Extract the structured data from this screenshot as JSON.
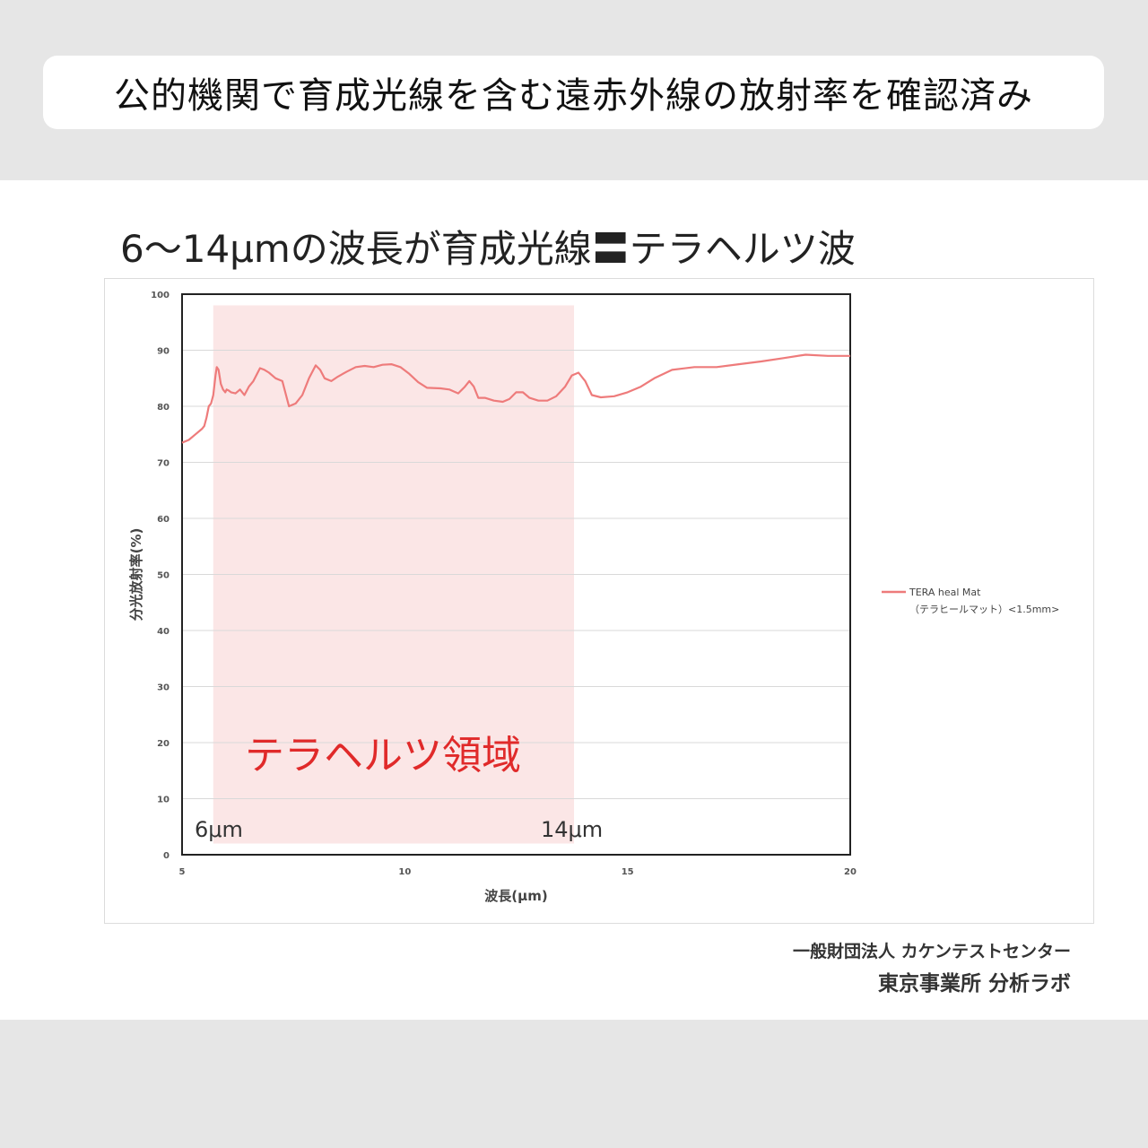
{
  "banner": {
    "text": "公的機関で育成光線を含む遠赤外線の放射率を確認済み"
  },
  "headline": {
    "text": "6〜14μmの波長が育成光線〓テラヘルツ波"
  },
  "chart_data": {
    "type": "line",
    "xlabel": "波長(μm)",
    "ylabel": "分光放射率(%)",
    "xlim": [
      5,
      20
    ],
    "ylim": [
      0,
      100
    ],
    "x_ticks": [
      5,
      10,
      15,
      20
    ],
    "y_ticks": [
      0,
      10,
      20,
      30,
      40,
      50,
      60,
      70,
      80,
      90,
      100
    ],
    "grid": "horizontal",
    "legend_position": "right",
    "line_color": "#ee7b7b",
    "series": [
      {
        "name": "TERA heal Mat",
        "name_sub": "（テラヒールマット）<1.5mm>",
        "x": [
          5.0,
          5.15,
          5.3,
          5.45,
          5.5,
          5.55,
          5.6,
          5.65,
          5.7,
          5.75,
          5.78,
          5.82,
          5.87,
          5.92,
          5.97,
          6.0,
          6.05,
          6.1,
          6.2,
          6.3,
          6.4,
          6.5,
          6.6,
          6.75,
          6.85,
          6.95,
          7.1,
          7.25,
          7.4,
          7.55,
          7.7,
          7.85,
          8.0,
          8.1,
          8.2,
          8.35,
          8.5,
          8.7,
          8.9,
          9.1,
          9.3,
          9.5,
          9.7,
          9.9,
          10.1,
          10.3,
          10.5,
          10.8,
          11.0,
          11.2,
          11.35,
          11.45,
          11.55,
          11.65,
          11.8,
          12.0,
          12.2,
          12.35,
          12.5,
          12.65,
          12.8,
          13.0,
          13.2,
          13.4,
          13.6,
          13.75,
          13.9,
          14.05,
          14.2,
          14.4,
          14.7,
          15.0,
          15.3,
          15.6,
          16.0,
          16.5,
          17.0,
          17.5,
          18.0,
          18.5,
          19.0,
          19.5,
          20.0
        ],
        "y": [
          73.5,
          74.0,
          75.0,
          76.0,
          76.5,
          78.0,
          80.0,
          80.5,
          82.0,
          85.5,
          87.0,
          86.5,
          84.0,
          83.0,
          82.5,
          83.0,
          82.8,
          82.5,
          82.3,
          83.0,
          82.0,
          83.5,
          84.5,
          86.8,
          86.5,
          86.0,
          85.0,
          84.5,
          80.0,
          80.5,
          82.0,
          85.0,
          87.3,
          86.5,
          85.0,
          84.5,
          85.3,
          86.2,
          87.0,
          87.2,
          87.0,
          87.4,
          87.5,
          87.0,
          85.8,
          84.3,
          83.3,
          83.2,
          83.0,
          82.3,
          83.5,
          84.5,
          83.5,
          81.5,
          81.5,
          81.0,
          80.8,
          81.3,
          82.5,
          82.5,
          81.5,
          81.0,
          81.0,
          81.8,
          83.5,
          85.5,
          86.0,
          84.5,
          82.0,
          81.6,
          81.8,
          82.5,
          83.5,
          85.0,
          86.5,
          87.0,
          87.0,
          87.5,
          88.0,
          88.6,
          89.2,
          89.0,
          89.0
        ]
      }
    ],
    "region": {
      "x_start": 5.7,
      "x_end": 13.8,
      "y_bottom": 2,
      "y_top": 98,
      "label": "テラヘルツ領域",
      "color": "#fbe6e6"
    },
    "markers": [
      {
        "label": "6μm",
        "x": 5.7
      },
      {
        "label": "14μm",
        "x": 13.8
      }
    ]
  },
  "credit": {
    "line1": "一般財団法人 カケンテストセンター",
    "line2": "東京事業所 分析ラボ"
  }
}
